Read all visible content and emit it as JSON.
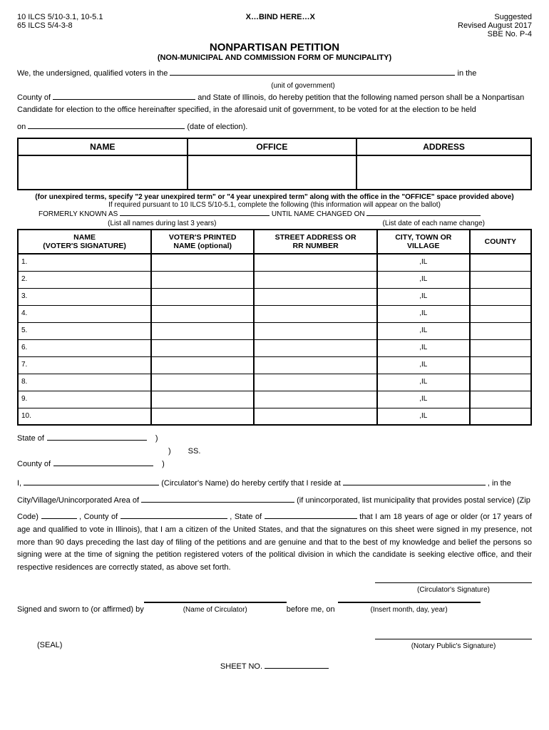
{
  "header": {
    "ilcs1": "10 ILCS 5/10-3.1, 10-5.1",
    "ilcs2": "65 ILCS 5/4-3-8",
    "bind": "X…BIND HERE…X",
    "suggested": "Suggested",
    "revised": "Revised August 2017",
    "sbe": "SBE No. P-4"
  },
  "title": "NONPARTISAN PETITION",
  "subtitle": "(NON-MUNICIPAL AND COMMISSION FORM OF MUNCIPALITY)",
  "intro": {
    "line1_pre": "We, the undersigned, qualified voters in the ",
    "line1_post": " in the",
    "unit_caption": "(unit of government)",
    "county_pre": "County of ",
    "county_post": " and State of Illinois, do hereby petition that the following named person shall be a Nonpartisan",
    "candidate_line": "Candidate for election to the office hereinafter specified, in the aforesaid unit of government, to be voted for at the election to be held",
    "on_pre": "on",
    "on_post": " (date of election)."
  },
  "candidate_table": {
    "headers": [
      "NAME",
      "OFFICE",
      "ADDRESS"
    ]
  },
  "notes": {
    "unexpired": "(for unexpired terms, specify \"2 year unexpired term\" or \"4 year unexpired term\" along with the office in the \"OFFICE\" space provided above)",
    "required": "If required pursuant to 10 ILCS 5/10-5.1, complete the following (this information will appear on the ballot)",
    "formerly_pre": "FORMERLY KNOWN AS ",
    "formerly_mid": " UNTIL NAME CHANGED ON ",
    "list_names": "(List all names during last 3 years)",
    "list_dates": "(List date of each name change)"
  },
  "sig_table": {
    "headers": {
      "name": "NAME\n(VOTER'S SIGNATURE)",
      "printed": "VOTER'S PRINTED\nNAME (optional)",
      "street": "STREET ADDRESS OR\nRR NUMBER",
      "city": "CITY, TOWN OR\nVILLAGE",
      "county": "COUNTY"
    },
    "rows": [
      "1.",
      "2.",
      "3.",
      "4.",
      "5.",
      "6.",
      "7.",
      "8.",
      "9.",
      "10."
    ],
    "il": ",IL"
  },
  "affidavit": {
    "state_of": "State of ",
    "county_of": "County of ",
    "ss": "SS.",
    "i_pre": "I, ",
    "circ_name_label": " (Circulator's Name) do hereby certify that I reside at ",
    "in_the": ", in the",
    "cityvillage_pre": " City/Village/Unincorporated Area of",
    "cityvillage_post": " (if unincorporated, list municipality that provides postal service) (Zip",
    "code_pre": "Code) ",
    "county_of2": ", County of",
    "state_of2": ", State of",
    "age_clause": " that I am 18 years of age or older (or 17 years of age and qualified to vote in Illinois), that I am a citizen of the United States, and that the signatures on this sheet were signed in my presence, not more than 90 days preceding the last day of filing of the petitions and are genuine and that to the best of my knowledge and belief the persons so signing were at the time of signing the petition registered voters of the political division in which the candidate is seeking elective office, and their respective residences are correctly stated, as above set forth.",
    "circ_sig": "(Circulator's Signature)",
    "sworn_pre": "Signed and sworn to (or affirmed) by ",
    "name_circ": "(Name of Circulator)",
    "before_me": " before me, on ",
    "insert_date": "(Insert month, day, year)",
    "seal": "(SEAL)",
    "notary": "(Notary Public's Signature)",
    "sheet_no": "SHEET NO. "
  }
}
